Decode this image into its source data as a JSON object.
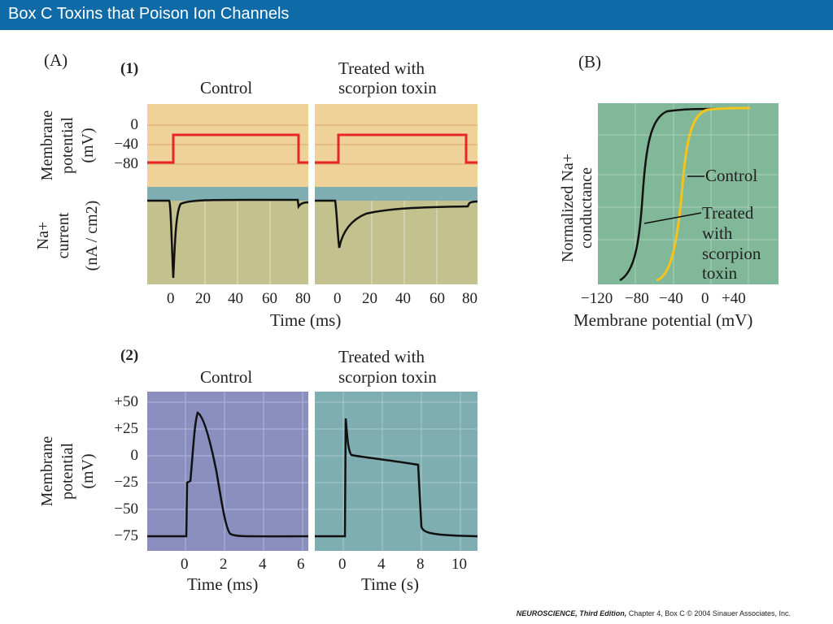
{
  "title": "Box C  Toxins that Poison Ion Channels",
  "footer": {
    "book": "NEUROSCIENCE, Third Edition,",
    "chapter": " Chapter 4, Box C",
    "copyright": "© 2004 Sinauer Associates, Inc."
  },
  "panelA": {
    "label": "(A)",
    "sub1": "(1)",
    "sub2": "(2)",
    "control": "Control",
    "treated_line1": "Treated with",
    "treated_line2": "scorpion toxin",
    "mp_line1": "Membrane",
    "mp_line2": "potential",
    "mp_unit": "(mV)",
    "na_line1": "Na+",
    "na_line2": "current",
    "na_unit": "(nA / cm2)",
    "vticks1": [
      "0",
      "−40",
      "−80"
    ],
    "time_ticks1": [
      "0",
      "20",
      "40",
      "60",
      "80"
    ],
    "time_label1": "Time (ms)",
    "vticks2": [
      "+50",
      "+25",
      "0",
      "−25",
      "−50",
      "−75"
    ],
    "ms_ticks": [
      "0",
      "2",
      "4",
      "6"
    ],
    "s_ticks": [
      "0",
      "4",
      "8",
      "10"
    ],
    "time_ms": "Time (ms)",
    "time_s": "Time (s)"
  },
  "panelB": {
    "label": "(B)",
    "ylabel_line1": "Normalized Na+",
    "ylabel_line2": "conductance",
    "xticks": [
      "−120",
      "−80",
      "−40",
      "0",
      "+40"
    ],
    "xlabel": "Membrane potential (mV)",
    "ann_control": "Control",
    "ann_treated": [
      "Treated",
      "with",
      "scorpion",
      "toxin"
    ]
  },
  "colors": {
    "title_bg": "#0f6aa8",
    "orange": "#eed29a",
    "olive": "#c3c28f",
    "teal": "#7eaeb1",
    "purple": "#8a8fbf",
    "green": "#82b89a",
    "red": "#e8252b",
    "yellow": "#f2c41c"
  }
}
